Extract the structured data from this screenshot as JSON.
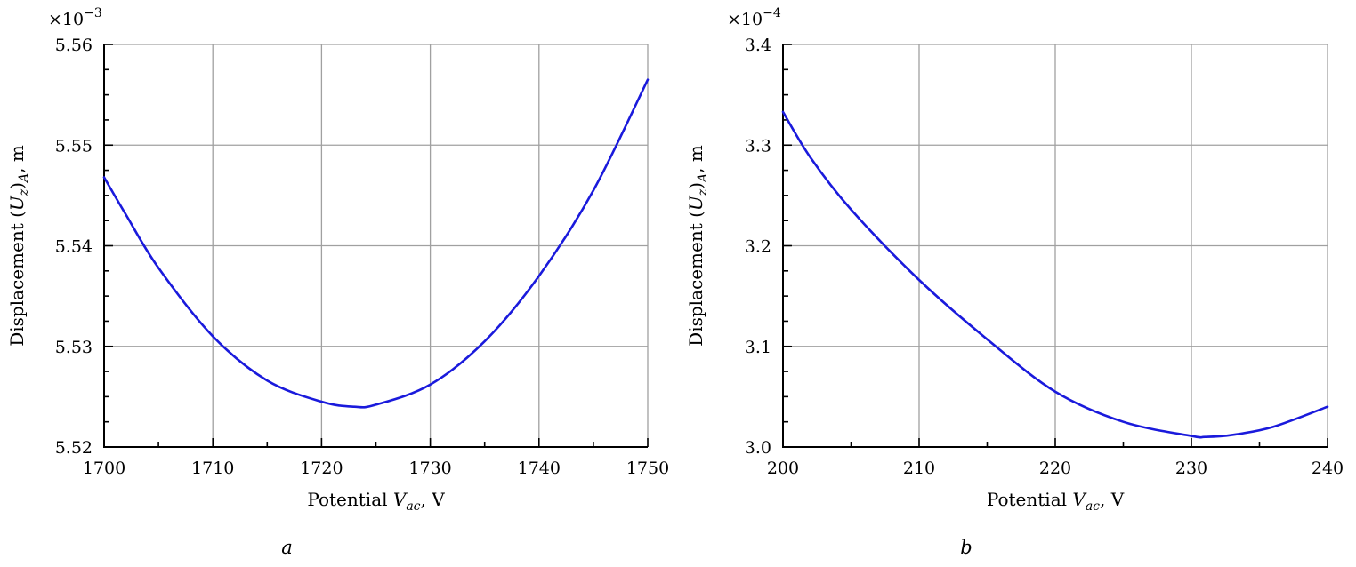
{
  "chart_data": [
    {
      "type": "line",
      "panel_label": "a",
      "xlabel": "Potential V_ac, V",
      "xlabel_parts": {
        "pre": "Potential ",
        "var": "V",
        "sub": "ac",
        "post": ", V"
      },
      "ylabel": "Displacement (U_z)_A, m",
      "ylabel_parts": {
        "pre": "Displacement (",
        "var": "U",
        "sub1": "z",
        "mid": ")",
        "sub2": "A",
        "post": ", m"
      },
      "y_multiplier": {
        "base": "×10",
        "exp": "−3"
      },
      "xlim": [
        1700,
        1750
      ],
      "ylim": [
        5.52,
        5.56
      ],
      "xticks": [
        1700,
        1710,
        1720,
        1730,
        1740,
        1750
      ],
      "xtick_labels": [
        "1700",
        "1710",
        "1720",
        "1730",
        "1740",
        "1750"
      ],
      "yticks": [
        5.52,
        5.53,
        5.54,
        5.55,
        5.56
      ],
      "ytick_labels": [
        "5.52",
        "5.53",
        "5.54",
        "5.55",
        "5.56"
      ],
      "grid": true,
      "series": [
        {
          "color": "#1a1adc",
          "x": [
            1700,
            1702,
            1705,
            1710,
            1715,
            1720,
            1723,
            1725,
            1730,
            1735,
            1740,
            1745,
            1750
          ],
          "y": [
            5.5468,
            5.5431,
            5.5378,
            5.531,
            5.5266,
            5.5245,
            5.524,
            5.5242,
            5.5262,
            5.5305,
            5.537,
            5.5455,
            5.5565
          ]
        }
      ]
    },
    {
      "type": "line",
      "panel_label": "b",
      "xlabel": "Potential V_ac, V",
      "xlabel_parts": {
        "pre": "Potential ",
        "var": "V",
        "sub": "ac",
        "post": ", V"
      },
      "ylabel": "Displacement (U_z)_A, m",
      "ylabel_parts": {
        "pre": "Displacement (",
        "var": "U",
        "sub1": "z",
        "mid": ")",
        "sub2": "A",
        "post": ", m"
      },
      "y_multiplier": {
        "base": "×10",
        "exp": "−4"
      },
      "xlim": [
        200,
        240
      ],
      "ylim": [
        3.0,
        3.4
      ],
      "xticks": [
        200,
        210,
        220,
        230,
        240
      ],
      "xtick_labels": [
        "200",
        "210",
        "220",
        "230",
        "240"
      ],
      "yticks": [
        3.0,
        3.1,
        3.2,
        3.3,
        3.4
      ],
      "ytick_labels": [
        "3.0",
        "3.1",
        "3.2",
        "3.3",
        "3.4"
      ],
      "grid": true,
      "series": [
        {
          "color": "#1a1adc",
          "x": [
            200,
            202,
            205,
            210,
            215,
            220,
            225,
            230,
            231,
            233,
            236,
            240
          ],
          "y": [
            3.333,
            3.288,
            3.236,
            3.166,
            3.107,
            3.055,
            3.025,
            3.011,
            3.01,
            3.012,
            3.02,
            3.04
          ]
        }
      ]
    }
  ]
}
